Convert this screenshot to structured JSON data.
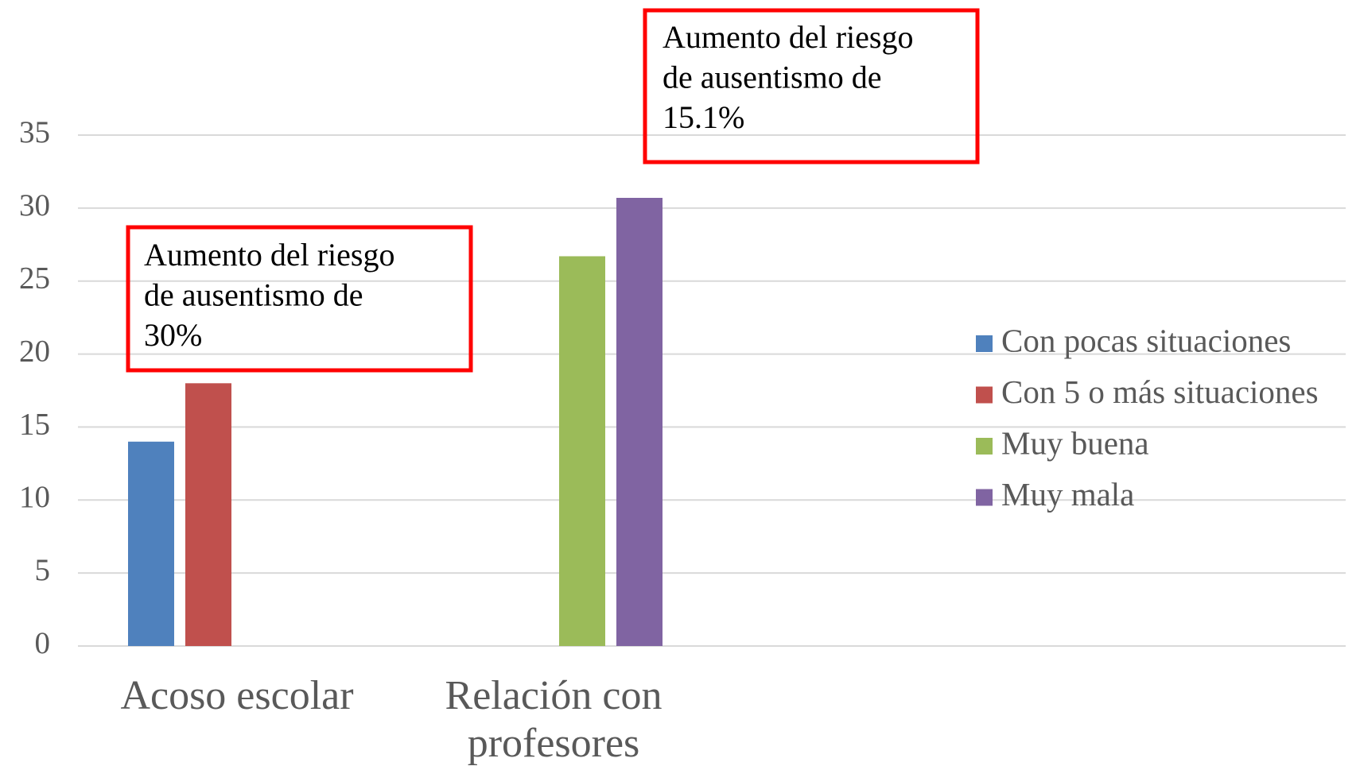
{
  "chart_data": {
    "type": "bar",
    "categories": [
      "Acoso escolar",
      "Relación con profesores"
    ],
    "series": [
      {
        "name": "Con pocas situaciones",
        "color": "#4f81bd",
        "values": [
          14,
          null
        ]
      },
      {
        "name": "Con 5 o más situaciones",
        "color": "#c0504d",
        "values": [
          18,
          null
        ]
      },
      {
        "name": "Muy buena",
        "color": "#9bbb59",
        "values": [
          null,
          26.7
        ]
      },
      {
        "name": "Muy mala",
        "color": "#8064a2",
        "values": [
          null,
          30.7
        ]
      }
    ],
    "ylim": [
      0,
      35
    ],
    "yticks": [
      0,
      5,
      10,
      15,
      20,
      25,
      30,
      35
    ],
    "grid": true,
    "legend": "right",
    "annotations": [
      {
        "lines": [
          "Aumento del riesgo",
          "de ausentismo de",
          "30%"
        ]
      },
      {
        "lines": [
          "Aumento del riesgo",
          "de ausentismo de",
          "15.1%"
        ]
      }
    ]
  }
}
